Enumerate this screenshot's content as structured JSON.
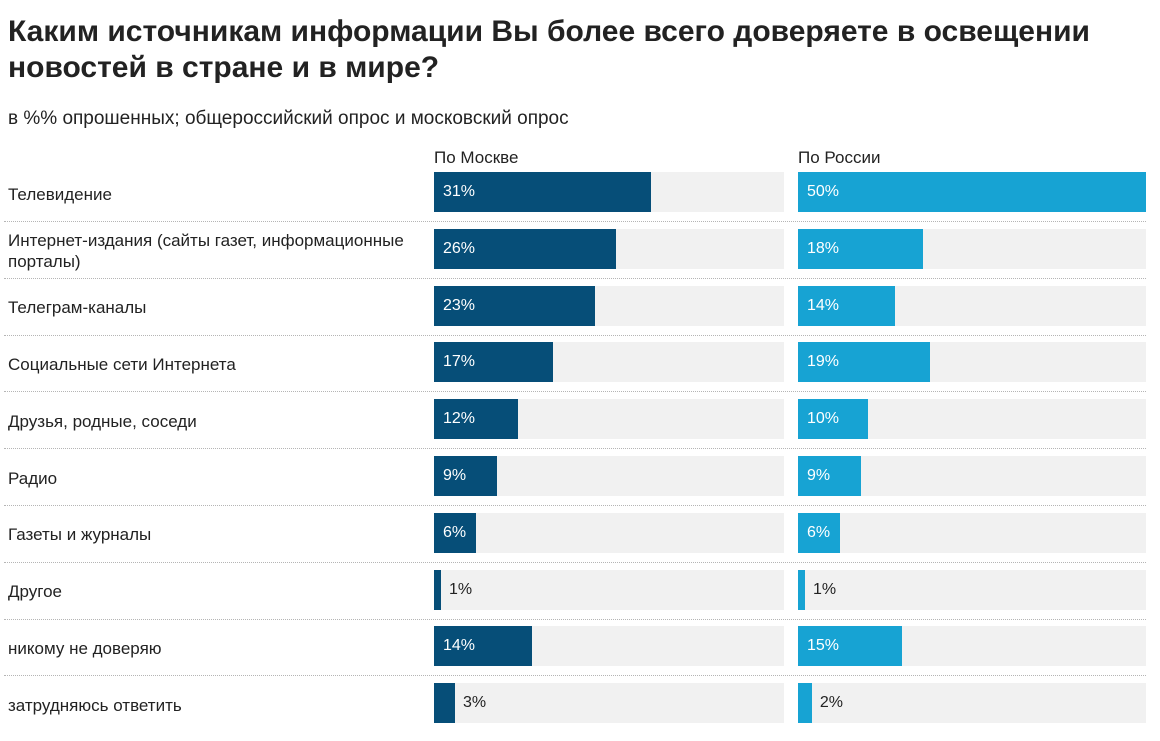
{
  "chart_data": {
    "type": "bar",
    "orientation": "horizontal",
    "title": "Каким источникам информации Вы более всего доверяете в освещении новостей в стране и в мире?",
    "subtitle": "в %% опрошенных; общероссийский опрос и московский опрос",
    "categories": [
      "Телевидение",
      "Интернет-издания (сайты газет, информационные порталы)",
      "Телеграм-каналы",
      "Социальные сети Интернета",
      "Друзья, родные, соседи",
      "Радио",
      "Газеты и журналы",
      "Другое",
      "никому не доверяю",
      "затрудняюсь ответить"
    ],
    "series": [
      {
        "name": "По Москве",
        "color": "#064e78",
        "values": [
          31,
          26,
          23,
          17,
          12,
          9,
          6,
          1,
          14,
          3
        ],
        "labels": [
          "31%",
          "26%",
          "23%",
          "17%",
          "12%",
          "9%",
          "6%",
          "1%",
          "14%",
          "3%"
        ]
      },
      {
        "name": "По России",
        "color": "#17a3d3",
        "values": [
          50,
          18,
          14,
          19,
          10,
          9,
          6,
          1,
          15,
          2
        ],
        "labels": [
          "50%",
          "18%",
          "14%",
          "19%",
          "10%",
          "9%",
          "6%",
          "1%",
          "15%",
          "2%"
        ]
      }
    ],
    "track_color": "#f1f1f1",
    "xlim": [
      0,
      50
    ],
    "grid": false,
    "legend": "column-headers"
  }
}
